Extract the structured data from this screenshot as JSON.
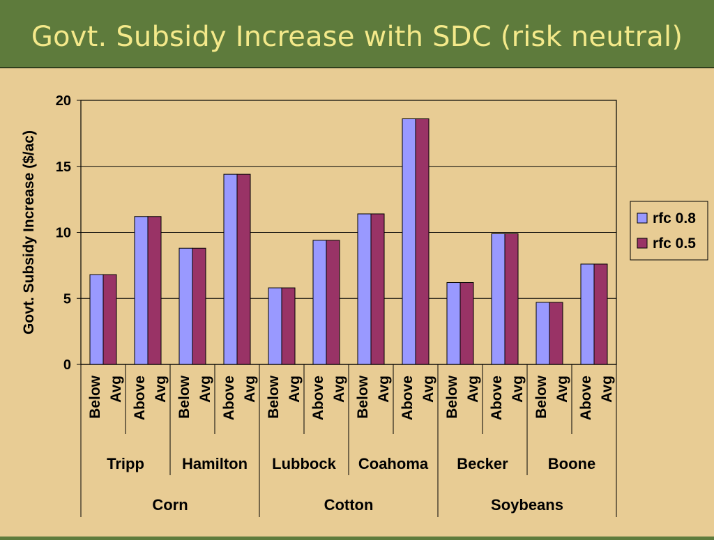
{
  "slide": {
    "title": "Govt. Subsidy Increase with SDC (risk neutral)"
  },
  "colors": {
    "header_bg": "#5e7b3c",
    "title_text": "#f4e98a",
    "slide_bg": "#e8cc94",
    "series_rfc08": "#9999ff",
    "series_rfc05": "#993366"
  },
  "chart_data": {
    "type": "bar",
    "title": "",
    "ylabel": "Govt. Subsidy Increase ($/ac)",
    "xlabel": "",
    "ylim": [
      0,
      20
    ],
    "yticks": [
      0,
      5,
      10,
      15,
      20
    ],
    "grid": true,
    "legend_position": "right",
    "categories": [
      [
        "Below",
        "Avg"
      ],
      [
        "Above",
        "Avg"
      ],
      [
        "Below",
        "Avg"
      ],
      [
        "Above",
        "Avg"
      ],
      [
        "Below",
        "Avg"
      ],
      [
        "Above",
        "Avg"
      ],
      [
        "Below",
        "Avg"
      ],
      [
        "Above",
        "Avg"
      ],
      [
        "Below",
        "Avg"
      ],
      [
        "Above",
        "Avg"
      ],
      [
        "Below",
        "Avg"
      ],
      [
        "Above",
        "Avg"
      ]
    ],
    "locations": [
      "Tripp",
      "Hamilton",
      "Lubbock",
      "Coahoma",
      "Becker",
      "Boone"
    ],
    "crops": [
      "Corn",
      "Cotton",
      "Soybeans"
    ],
    "series": [
      {
        "name": "rfc 0.8",
        "color": "#9999ff",
        "values": [
          6.8,
          11.2,
          8.8,
          14.4,
          5.8,
          9.4,
          11.4,
          18.6,
          6.2,
          9.9,
          4.7,
          7.6
        ]
      },
      {
        "name": "rfc 0.5",
        "color": "#993366",
        "values": [
          6.8,
          11.2,
          8.8,
          14.4,
          5.8,
          9.4,
          11.4,
          18.6,
          6.2,
          9.9,
          4.7,
          7.6
        ]
      }
    ]
  }
}
